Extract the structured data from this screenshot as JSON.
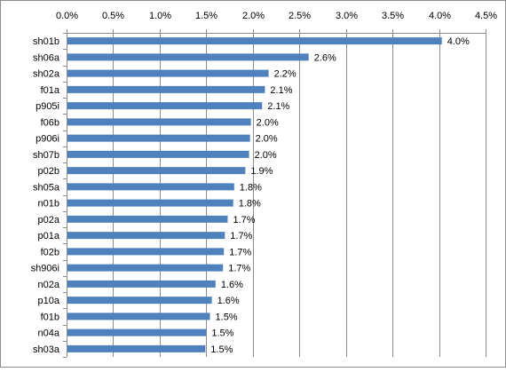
{
  "chart_data": {
    "type": "bar",
    "orientation": "horizontal",
    "title": "",
    "xlabel": "",
    "ylabel": "",
    "xlim": [
      0,
      4.5
    ],
    "x_ticks": [
      "0.0%",
      "0.5%",
      "1.0%",
      "1.5%",
      "2.0%",
      "2.5%",
      "3.0%",
      "3.5%",
      "4.0%",
      "4.5%"
    ],
    "x_axis_position": "top",
    "grid": true,
    "legend": "none",
    "bar_color": "#4f81bd",
    "categories": [
      "sh01b",
      "sh06a",
      "sh02a",
      "f01a",
      "p905i",
      "f06b",
      "p906i",
      "sh07b",
      "p02b",
      "sh05a",
      "n01b",
      "p02a",
      "p01a",
      "f02b",
      "sh906i",
      "n02a",
      "p10a",
      "f01b",
      "n04a",
      "sh03a"
    ],
    "values": [
      4.03,
      2.6,
      2.17,
      2.13,
      2.1,
      1.98,
      1.97,
      1.96,
      1.92,
      1.8,
      1.79,
      1.73,
      1.7,
      1.69,
      1.68,
      1.6,
      1.56,
      1.54,
      1.5,
      1.49
    ],
    "data_labels": [
      "4.0%",
      "2.6%",
      "2.2%",
      "2.1%",
      "2.1%",
      "2.0%",
      "2.0%",
      "2.0%",
      "1.9%",
      "1.8%",
      "1.8%",
      "1.7%",
      "1.7%",
      "1.7%",
      "1.7%",
      "1.6%",
      "1.6%",
      "1.5%",
      "1.5%",
      "1.5%"
    ]
  }
}
